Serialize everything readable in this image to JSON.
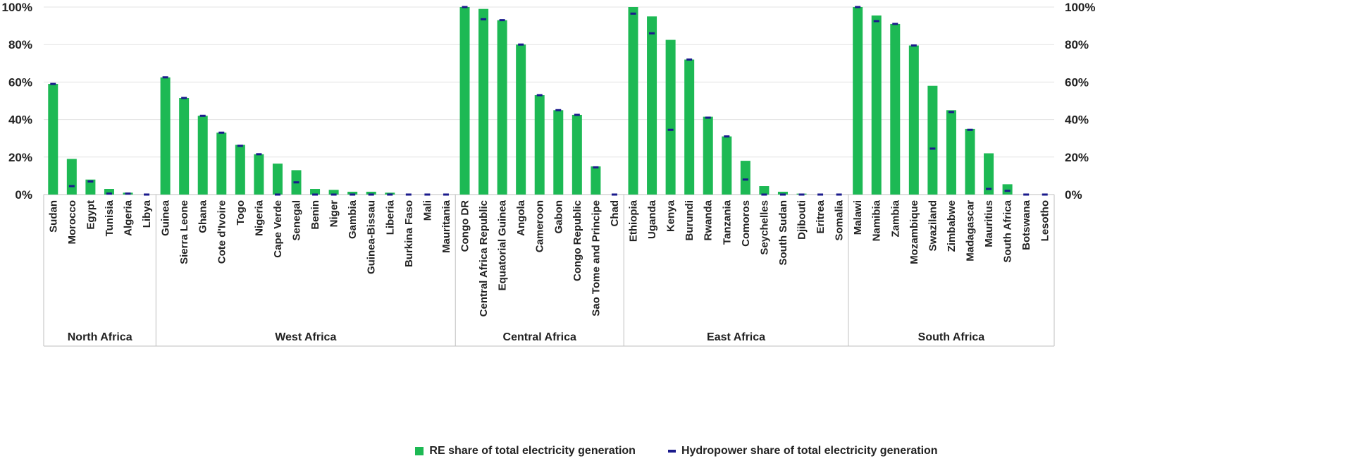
{
  "chart_data": {
    "type": "bar",
    "ylim": [
      0,
      100
    ],
    "y_ticks": [
      "0%",
      "20%",
      "40%",
      "60%",
      "80%",
      "100%"
    ],
    "y_tick_values": [
      0,
      20,
      40,
      60,
      80,
      100
    ],
    "grid": true,
    "legend_position": "bottom",
    "colors": {
      "re_bar": "#1db954",
      "hydro_marker": "#1a1a8c"
    },
    "legend": {
      "re_label": "RE share of total electricity generation",
      "hydro_label": "Hydropower share of total electricity generation"
    },
    "regions": [
      {
        "name": "North Africa",
        "countries": [
          "Sudan",
          "Morocco",
          "Egypt",
          "Tunisia",
          "Algeria",
          "Libya"
        ]
      },
      {
        "name": "West Africa",
        "countries": [
          "Guinea",
          "Sierra Leone",
          "Ghana",
          "Cote d'Ivoire",
          "Togo",
          "Nigeria",
          "Cape Verde",
          "Senegal",
          "Benin",
          "Niger",
          "Gambia",
          "Guinea-Bissau",
          "Liberia",
          "Burkina Faso",
          "Mali",
          "Mauritania"
        ]
      },
      {
        "name": "Central Africa",
        "countries": [
          "Congo DR",
          "Central Africa Republic",
          "Equatorial Guinea",
          "Angola",
          "Cameroon",
          "Gabon",
          "Congo Republic",
          "Sao Tome and Principe",
          "Chad"
        ]
      },
      {
        "name": "East Africa",
        "countries": [
          "Ethiopia",
          "Uganda",
          "Kenya",
          "Burundi",
          "Rwanda",
          "Tanzania",
          "Comoros",
          "Seychelles",
          "South Sudan",
          "Djibouti",
          "Eritrea",
          "Somalia"
        ]
      },
      {
        "name": "South Africa",
        "countries": [
          "Malawi",
          "Namibia",
          "Zambia",
          "Mozambique",
          "Swaziland",
          "Zimbabwe",
          "Madagascar",
          "Mauritius",
          "South Africa",
          "Botswana",
          "Lesotho"
        ]
      }
    ],
    "series": [
      {
        "name": "RE share of total electricity generation",
        "values": [
          59,
          19,
          8,
          3,
          1,
          0,
          62.5,
          51.5,
          42,
          33,
          26.5,
          21.5,
          16.5,
          13,
          3,
          2.5,
          1.5,
          1.5,
          1,
          0,
          0,
          0,
          100,
          99,
          93,
          80,
          53,
          45,
          42.5,
          15,
          0,
          100,
          95,
          82.5,
          72,
          41.5,
          31,
          18,
          4.5,
          1.5,
          0.5,
          0,
          0,
          100,
          95.5,
          91,
          79.5,
          58,
          45,
          35,
          22,
          5.5,
          0,
          0
        ]
      },
      {
        "name": "Hydropower share of total electricity generation",
        "values": [
          59,
          4.5,
          7,
          0.5,
          0.5,
          0,
          62.5,
          51.5,
          42,
          33,
          26,
          21.5,
          0,
          6.5,
          0,
          0,
          0,
          0,
          0,
          0,
          0,
          0,
          100,
          93.5,
          93,
          80,
          53,
          45,
          42.5,
          14.5,
          0,
          96.5,
          86,
          34.5,
          72,
          41,
          31,
          8,
          0,
          0,
          0,
          0,
          0,
          100,
          92.5,
          91,
          79.5,
          24.5,
          44,
          34.5,
          3,
          2,
          0,
          0
        ]
      }
    ]
  }
}
